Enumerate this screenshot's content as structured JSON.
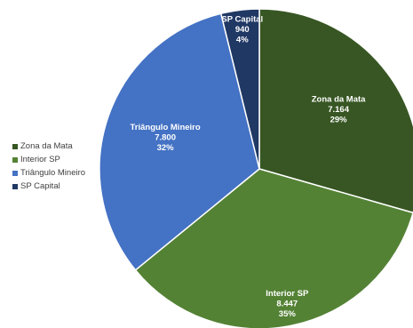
{
  "chart_data": {
    "type": "pie",
    "title": "",
    "categories": [
      "Zona da Mata",
      "Interior SP",
      "Triângulo Mineiro",
      "SP Capital"
    ],
    "values": [
      7164,
      8447,
      7800,
      940
    ],
    "value_labels": [
      "7.164",
      "8.447",
      "7.800",
      "940"
    ],
    "percent_labels": [
      "29%",
      "35%",
      "32%",
      "4%"
    ],
    "colors": [
      "#375623",
      "#548235",
      "#4472C4",
      "#203864"
    ],
    "legend": "left",
    "start_angle_deg": 0,
    "direction": "clockwise"
  }
}
